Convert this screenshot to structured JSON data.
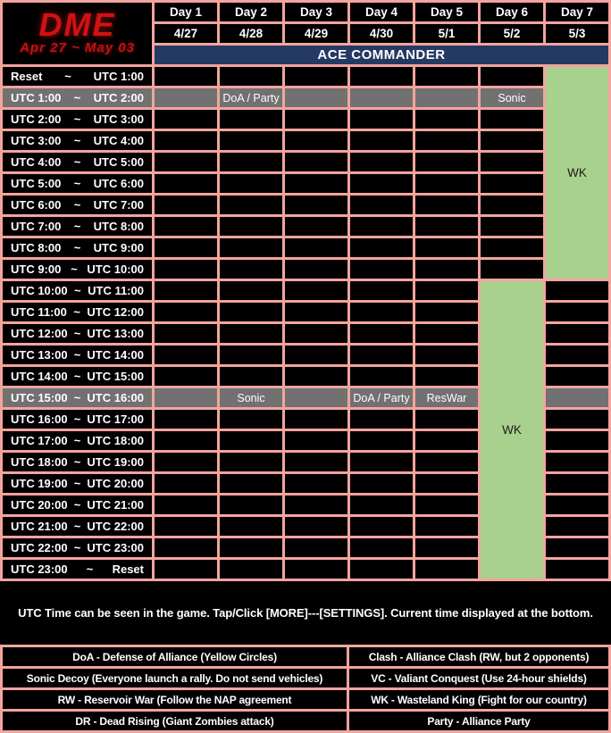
{
  "logo": {
    "title": "DME",
    "date_range": "Apr 27 ~ May 03"
  },
  "header": {
    "banner": "ACE COMMANDER",
    "days": [
      {
        "label": "Day 1",
        "date": "4/27"
      },
      {
        "label": "Day 2",
        "date": "4/28"
      },
      {
        "label": "Day 3",
        "date": "4/29"
      },
      {
        "label": "Day 4",
        "date": "4/30"
      },
      {
        "label": "Day 5",
        "date": "5/1"
      },
      {
        "label": "Day 6",
        "date": "5/2"
      },
      {
        "label": "Day 7",
        "date": "5/3"
      }
    ]
  },
  "schedule": {
    "tilde": "~",
    "rows": [
      {
        "start": "Reset",
        "end": "UTC 1:00",
        "highlight": false,
        "events": [
          "",
          "",
          "",
          "",
          "",
          "",
          ""
        ]
      },
      {
        "start": "UTC 1:00",
        "end": "UTC 2:00",
        "highlight": true,
        "events": [
          "",
          "DoA / Party",
          "",
          "",
          "",
          "Sonic",
          ""
        ]
      },
      {
        "start": "UTC 2:00",
        "end": "UTC 3:00",
        "highlight": false,
        "events": [
          "",
          "",
          "",
          "",
          "",
          "",
          ""
        ]
      },
      {
        "start": "UTC 3:00",
        "end": "UTC 4:00",
        "highlight": false,
        "events": [
          "",
          "",
          "",
          "",
          "",
          "",
          ""
        ]
      },
      {
        "start": "UTC 4:00",
        "end": "UTC 5:00",
        "highlight": false,
        "events": [
          "",
          "",
          "",
          "",
          "",
          "",
          ""
        ]
      },
      {
        "start": "UTC 5:00",
        "end": "UTC 6:00",
        "highlight": false,
        "events": [
          "",
          "",
          "",
          "",
          "",
          "",
          ""
        ]
      },
      {
        "start": "UTC 6:00",
        "end": "UTC 7:00",
        "highlight": false,
        "events": [
          "",
          "",
          "",
          "",
          "",
          "",
          ""
        ]
      },
      {
        "start": "UTC 7:00",
        "end": "UTC 8:00",
        "highlight": false,
        "events": [
          "",
          "",
          "",
          "",
          "",
          "",
          ""
        ]
      },
      {
        "start": "UTC 8:00",
        "end": "UTC 9:00",
        "highlight": false,
        "events": [
          "",
          "",
          "",
          "",
          "",
          "",
          ""
        ]
      },
      {
        "start": "UTC 9:00",
        "end": "UTC 10:00",
        "highlight": false,
        "events": [
          "",
          "",
          "",
          "",
          "",
          "",
          ""
        ]
      },
      {
        "start": "UTC 10:00",
        "end": "UTC 11:00",
        "highlight": false,
        "events": [
          "",
          "",
          "",
          "",
          "",
          "",
          ""
        ]
      },
      {
        "start": "UTC 11:00",
        "end": "UTC 12:00",
        "highlight": false,
        "events": [
          "",
          "",
          "",
          "",
          "",
          "",
          ""
        ]
      },
      {
        "start": "UTC 12:00",
        "end": "UTC 13:00",
        "highlight": false,
        "events": [
          "",
          "",
          "",
          "",
          "",
          "",
          ""
        ]
      },
      {
        "start": "UTC 13:00",
        "end": "UTC 14:00",
        "highlight": false,
        "events": [
          "",
          "",
          "",
          "",
          "",
          "",
          ""
        ]
      },
      {
        "start": "UTC 14:00",
        "end": "UTC 15:00",
        "highlight": false,
        "events": [
          "",
          "",
          "",
          "",
          "",
          "",
          ""
        ]
      },
      {
        "start": "UTC 15:00",
        "end": "UTC 16:00",
        "highlight": true,
        "events": [
          "",
          "Sonic",
          "",
          "DoA / Party",
          "ResWar",
          "",
          ""
        ]
      },
      {
        "start": "UTC 16:00",
        "end": "UTC 17:00",
        "highlight": false,
        "events": [
          "",
          "",
          "",
          "",
          "",
          "",
          ""
        ]
      },
      {
        "start": "UTC 17:00",
        "end": "UTC 18:00",
        "highlight": false,
        "events": [
          "",
          "",
          "",
          "",
          "",
          "",
          ""
        ]
      },
      {
        "start": "UTC 18:00",
        "end": "UTC 19:00",
        "highlight": false,
        "events": [
          "",
          "",
          "",
          "",
          "",
          "",
          ""
        ]
      },
      {
        "start": "UTC 19:00",
        "end": "UTC 20:00",
        "highlight": false,
        "events": [
          "",
          "",
          "",
          "",
          "",
          "",
          ""
        ]
      },
      {
        "start": "UTC 20:00",
        "end": "UTC 21:00",
        "highlight": false,
        "events": [
          "",
          "",
          "",
          "",
          "",
          "",
          ""
        ]
      },
      {
        "start": "UTC 21:00",
        "end": "UTC 22:00",
        "highlight": false,
        "events": [
          "",
          "",
          "",
          "",
          "",
          "",
          ""
        ]
      },
      {
        "start": "UTC 22:00",
        "end": "UTC 23:00",
        "highlight": false,
        "events": [
          "",
          "",
          "",
          "",
          "",
          "",
          ""
        ]
      },
      {
        "start": "UTC 23:00",
        "end": "Reset",
        "highlight": false,
        "events": [
          "",
          "",
          "",
          "",
          "",
          "",
          ""
        ]
      }
    ],
    "merges": [
      {
        "label": "WK",
        "day_index": 6,
        "row_start": 0,
        "row_span": 10
      },
      {
        "label": "WK",
        "day_index": 5,
        "row_start": 10,
        "row_span": 14
      }
    ]
  },
  "note": "UTC Time can be seen in the game. Tap/Click [MORE]---[SETTINGS]. Current time displayed at the bottom.",
  "legend": {
    "rows": [
      {
        "left": "DoA - Defense of Alliance (Yellow Circles)",
        "right": "Clash - Alliance Clash (RW, but 2 opponents)"
      },
      {
        "left": "Sonic Decoy (Everyone launch a rally. Do not send vehicles)",
        "right": "VC - Valiant Conquest (Use 24-hour shields)"
      },
      {
        "left": "RW - Reservoir War (Follow the NAP agreement",
        "right": "WK - Wasteland King (Fight for our country)"
      },
      {
        "left": "DR - Dead Rising (Giant Zombies attack)",
        "right": "Party - Alliance Party"
      }
    ]
  },
  "colors": {
    "grid_line_pink": "#F2A49E",
    "banner_navy": "#253A62",
    "highlight_gray": "#717171",
    "wk_green": "#A9D18E",
    "cell_black": "#000000",
    "text_white": "#FFFFFF",
    "logo_red": "#D11212"
  }
}
